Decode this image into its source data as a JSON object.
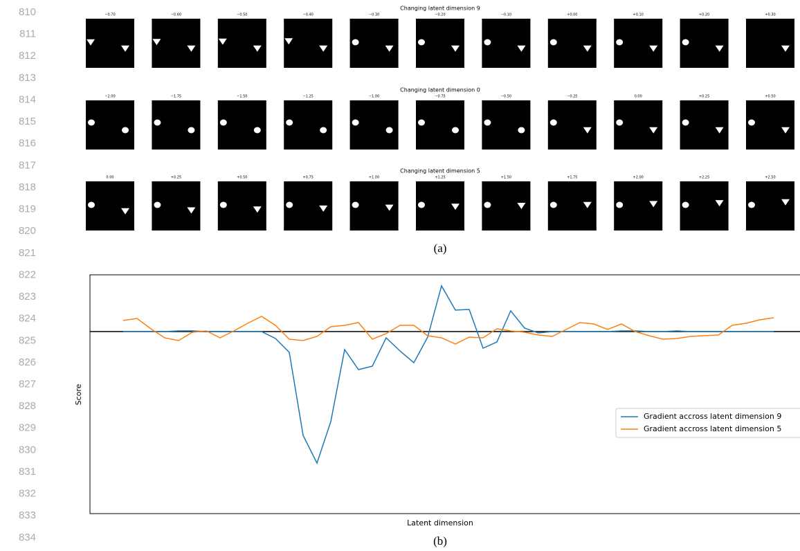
{
  "line_numbers": [
    810,
    811,
    812,
    813,
    814,
    815,
    816,
    817,
    818,
    819,
    820,
    821,
    822,
    823,
    824,
    825,
    826,
    827,
    828,
    829,
    830,
    831,
    832,
    833,
    834
  ],
  "figure_a": {
    "rows": [
      {
        "title": "Changing latent dimension 9",
        "labels": [
          "−0.70",
          "−0.60",
          "−0.50",
          "−0.40",
          "−0.30",
          "−0.20",
          "−0.10",
          "+0.00",
          "+0.10",
          "+0.20",
          "+0.30"
        ]
      },
      {
        "title": "Changing latent dimension 0",
        "labels": [
          "−2.00",
          "−1.75",
          "−1.50",
          "−1.25",
          "−1.00",
          "−0.75",
          "−0.50",
          "−0.25",
          "0.00",
          "+0.25",
          "+0.50"
        ]
      },
      {
        "title": "Changing latent dimension 5",
        "labels": [
          "0.00",
          "+0.25",
          "+0.50",
          "+0.75",
          "+1.00",
          "+1.25",
          "+1.50",
          "+1.75",
          "+2.00",
          "+2.25",
          "+2.50"
        ]
      }
    ],
    "caption": "(a)"
  },
  "chart_data": {
    "type": "line",
    "xlabel": "Latent dimension",
    "ylabel": "Score",
    "x": [
      0,
      1,
      2,
      3,
      4,
      5,
      6,
      7,
      8,
      9,
      10,
      11,
      12,
      13,
      14,
      15,
      16,
      17,
      18,
      19,
      20,
      21,
      22,
      23,
      24,
      25,
      26,
      27,
      28,
      29,
      30,
      31,
      32,
      33,
      34,
      35,
      36,
      37,
      38,
      39,
      40,
      41,
      42,
      43,
      44,
      45,
      46,
      47
    ],
    "xlim": [
      -2.4,
      48.9
    ],
    "ylim": [
      -26.3,
      8.2
    ],
    "reference_line": 0,
    "legend": "lower right",
    "series": [
      {
        "name": "Gradient accross latent dimension 9",
        "color": "#1f77b4",
        "values": [
          0,
          0,
          0,
          0,
          0.1,
          0.1,
          0,
          0,
          0,
          0,
          0,
          -1.0,
          -3.0,
          -15,
          -19,
          -13,
          -2.6,
          -5.5,
          -5.0,
          -0.9,
          -2.8,
          -4.5,
          -0.8,
          6.6,
          3.1,
          3.2,
          -2.4,
          -1.5,
          3.0,
          0.5,
          -0.2,
          0,
          0,
          0,
          0,
          0,
          0.1,
          0.1,
          0,
          0,
          0.1,
          0,
          0,
          0,
          0,
          0,
          0,
          0
        ]
      },
      {
        "name": "Gradient accross latent dimension 5",
        "color": "#ff7f0e",
        "values": [
          1.6,
          1.9,
          0.4,
          -0.9,
          -1.3,
          -0.1,
          0.1,
          -0.9,
          0.1,
          1.2,
          2.2,
          0.9,
          -1.1,
          -1.3,
          -0.7,
          0.7,
          0.9,
          1.3,
          -1.1,
          -0.3,
          0.9,
          0.9,
          -0.6,
          -0.9,
          -1.8,
          -0.8,
          -0.9,
          0.4,
          0.1,
          -0.1,
          -0.5,
          -0.7,
          0.3,
          1.3,
          1.1,
          0.3,
          1.1,
          0,
          -0.6,
          -1.1,
          -1.0,
          -0.7,
          -0.6,
          -0.5,
          0.9,
          1.2,
          1.7,
          2.0
        ]
      }
    ]
  },
  "caption_b": "(b)"
}
